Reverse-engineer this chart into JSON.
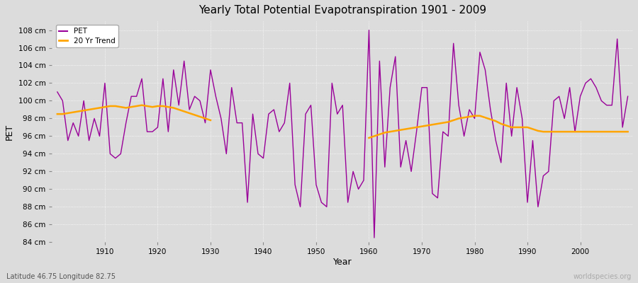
{
  "title": "Yearly Total Potential Evapotranspiration 1901 - 2009",
  "xlabel": "Year",
  "ylabel": "PET",
  "bottom_left_label": "Latitude 46.75 Longitude 82.75",
  "bottom_right_label": "worldspecies.org",
  "ylim": [
    84,
    109
  ],
  "ytick_step": 2,
  "pet_color": "#990099",
  "trend_color": "#FFA500",
  "bg_color": "#dcdcdc",
  "years": [
    1901,
    1902,
    1903,
    1904,
    1905,
    1906,
    1907,
    1908,
    1909,
    1910,
    1911,
    1912,
    1913,
    1914,
    1915,
    1916,
    1917,
    1918,
    1919,
    1920,
    1921,
    1922,
    1923,
    1924,
    1925,
    1926,
    1927,
    1928,
    1929,
    1930,
    1931,
    1932,
    1933,
    1934,
    1935,
    1936,
    1937,
    1938,
    1939,
    1940,
    1941,
    1942,
    1943,
    1944,
    1945,
    1946,
    1947,
    1948,
    1949,
    1950,
    1951,
    1952,
    1953,
    1954,
    1955,
    1956,
    1957,
    1958,
    1959,
    1960,
    1961,
    1962,
    1963,
    1964,
    1965,
    1966,
    1967,
    1968,
    1969,
    1970,
    1971,
    1972,
    1973,
    1974,
    1975,
    1976,
    1977,
    1978,
    1979,
    1980,
    1981,
    1982,
    1983,
    1984,
    1985,
    1986,
    1987,
    1988,
    1989,
    1990,
    1991,
    1992,
    1993,
    1994,
    1995,
    1996,
    1997,
    1998,
    1999,
    2000,
    2001,
    2002,
    2003,
    2004,
    2005,
    2006,
    2007,
    2008,
    2009
  ],
  "pet": [
    101.0,
    100.0,
    95.5,
    97.5,
    96.0,
    100.0,
    95.5,
    98.0,
    96.0,
    102.0,
    94.0,
    93.5,
    94.0,
    97.5,
    100.5,
    100.5,
    102.5,
    96.5,
    96.5,
    97.0,
    102.5,
    96.5,
    103.5,
    99.5,
    104.5,
    99.0,
    100.5,
    100.0,
    97.5,
    103.5,
    100.5,
    98.0,
    94.0,
    101.5,
    97.5,
    97.5,
    88.5,
    98.5,
    94.0,
    93.5,
    98.5,
    99.0,
    96.5,
    97.5,
    102.0,
    90.5,
    88.0,
    98.5,
    99.5,
    90.5,
    88.5,
    88.0,
    102.0,
    98.5,
    99.5,
    88.5,
    92.0,
    90.0,
    91.0,
    108.0,
    84.5,
    104.5,
    92.5,
    101.5,
    105.0,
    92.5,
    95.5,
    92.0,
    96.5,
    101.5,
    101.5,
    89.5,
    89.0,
    96.5,
    96.0,
    106.5,
    99.5,
    96.0,
    99.0,
    98.0,
    105.5,
    103.5,
    99.0,
    95.5,
    93.0,
    102.0,
    96.0,
    101.5,
    98.0,
    88.5,
    95.5,
    88.0,
    91.5,
    92.0,
    100.0,
    100.5,
    98.0,
    101.5,
    96.5,
    100.5,
    102.0,
    102.5,
    101.5,
    100.0,
    99.5,
    99.5,
    107.0,
    97.0,
    100.5
  ],
  "trend_seg1_years": [
    1901,
    1902,
    1903,
    1904,
    1905,
    1906,
    1907,
    1908,
    1909,
    1910,
    1911,
    1912,
    1913,
    1914,
    1915,
    1916,
    1917,
    1918,
    1919,
    1920,
    1921,
    1922,
    1923,
    1924,
    1925,
    1926,
    1927,
    1928,
    1929,
    1930
  ],
  "trend_seg1": [
    98.5,
    98.5,
    98.6,
    98.7,
    98.8,
    98.9,
    99.0,
    99.1,
    99.2,
    99.3,
    99.4,
    99.4,
    99.3,
    99.2,
    99.3,
    99.4,
    99.5,
    99.4,
    99.3,
    99.4,
    99.4,
    99.3,
    99.2,
    99.0,
    98.8,
    98.6,
    98.4,
    98.2,
    98.0,
    97.8
  ],
  "trend_seg2_years": [
    1960,
    1961,
    1962,
    1963,
    1964,
    1965,
    1966,
    1967,
    1968,
    1969,
    1970,
    1971,
    1972,
    1973,
    1974,
    1975,
    1976,
    1977,
    1978,
    1979,
    1980,
    1981,
    1982,
    1983,
    1984,
    1985,
    1986,
    1987,
    1988,
    1989,
    1990,
    1991,
    1992,
    1993,
    1994,
    1995,
    1996,
    1997,
    1998,
    1999,
    2000,
    2001,
    2002,
    2003,
    2004,
    2005,
    2006,
    2007,
    2008,
    2009
  ],
  "trend_seg2": [
    95.8,
    96.0,
    96.2,
    96.4,
    96.5,
    96.6,
    96.7,
    96.8,
    96.9,
    97.0,
    97.1,
    97.2,
    97.3,
    97.4,
    97.5,
    97.6,
    97.8,
    98.0,
    98.1,
    98.2,
    98.3,
    98.3,
    98.1,
    97.9,
    97.7,
    97.4,
    97.2,
    97.0,
    97.0,
    97.0,
    97.0,
    96.8,
    96.6,
    96.5,
    96.5,
    96.5,
    96.5,
    96.5,
    96.5,
    96.5,
    96.5,
    96.5,
    96.5,
    96.5,
    96.5,
    96.5,
    96.5,
    96.5,
    96.5,
    96.5
  ],
  "xticks": [
    1910,
    1920,
    1930,
    1940,
    1950,
    1960,
    1970,
    1980,
    1990,
    2000
  ],
  "xlim": [
    1900,
    2010
  ]
}
